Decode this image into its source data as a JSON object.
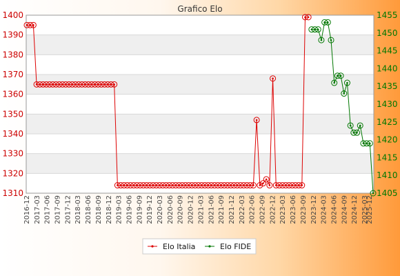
{
  "chart_data": {
    "type": "line",
    "title": "Grafico Elo",
    "x_axis": {
      "ticks": [
        "2016-12",
        "2017-03",
        "2017-06",
        "2017-09",
        "2017-12",
        "2018-03",
        "2018-06",
        "2018-09",
        "2018-12",
        "2019-03",
        "2019-06",
        "2019-09",
        "2019-12",
        "2020-03",
        "2020-06",
        "2020-09",
        "2020-12",
        "2021-03",
        "2021-06",
        "2021-09",
        "2021-12",
        "2022-03",
        "2022-06",
        "2022-09",
        "2022-12",
        "2023-03",
        "2023-06",
        "2023-09",
        "2023-12",
        "2024-03",
        "2024-06",
        "2024-09",
        "2024-12",
        "2025-03"
      ],
      "first_label": "2016-12",
      "last_label": "2025-12"
    },
    "y_left": {
      "min": 1310,
      "max": 1400,
      "ticks": [
        1310,
        1320,
        1330,
        1340,
        1350,
        1360,
        1370,
        1380,
        1390,
        1400
      ]
    },
    "y_right": {
      "min": 1405,
      "max": 1455,
      "ticks": [
        1405,
        1410,
        1415,
        1420,
        1425,
        1430,
        1435,
        1440,
        1445,
        1450,
        1455
      ]
    },
    "grid": true,
    "legend_position": "bottom",
    "series": [
      {
        "name": "Elo Italia",
        "axis": "left",
        "color": "#dd0000",
        "points": [
          [
            0,
            1395
          ],
          [
            1,
            1395
          ],
          [
            2,
            1395
          ],
          [
            3,
            1365
          ],
          [
            4,
            1365
          ],
          [
            5,
            1365
          ],
          [
            6,
            1365
          ],
          [
            7,
            1365
          ],
          [
            8,
            1365
          ],
          [
            9,
            1365
          ],
          [
            10,
            1365
          ],
          [
            11,
            1365
          ],
          [
            12,
            1365
          ],
          [
            13,
            1365
          ],
          [
            14,
            1365
          ],
          [
            15,
            1365
          ],
          [
            16,
            1365
          ],
          [
            17,
            1365
          ],
          [
            18,
            1365
          ],
          [
            19,
            1365
          ],
          [
            20,
            1365
          ],
          [
            21,
            1365
          ],
          [
            22,
            1365
          ],
          [
            23,
            1365
          ],
          [
            24,
            1365
          ],
          [
            25,
            1365
          ],
          [
            26,
            1365
          ],
          [
            27,
            1365
          ],
          [
            28,
            1314
          ],
          [
            29,
            1314
          ],
          [
            30,
            1314
          ],
          [
            31,
            1314
          ],
          [
            32,
            1314
          ],
          [
            33,
            1314
          ],
          [
            34,
            1314
          ],
          [
            35,
            1314
          ],
          [
            36,
            1314
          ],
          [
            37,
            1314
          ],
          [
            38,
            1314
          ],
          [
            39,
            1314
          ],
          [
            40,
            1314
          ],
          [
            41,
            1314
          ],
          [
            42,
            1314
          ],
          [
            43,
            1314
          ],
          [
            44,
            1314
          ],
          [
            45,
            1314
          ],
          [
            46,
            1314
          ],
          [
            47,
            1314
          ],
          [
            48,
            1314
          ],
          [
            49,
            1314
          ],
          [
            50,
            1314
          ],
          [
            51,
            1314
          ],
          [
            52,
            1314
          ],
          [
            53,
            1314
          ],
          [
            54,
            1314
          ],
          [
            55,
            1314
          ],
          [
            56,
            1314
          ],
          [
            57,
            1314
          ],
          [
            58,
            1314
          ],
          [
            59,
            1314
          ],
          [
            60,
            1314
          ],
          [
            61,
            1314
          ],
          [
            62,
            1314
          ],
          [
            63,
            1314
          ],
          [
            64,
            1314
          ],
          [
            65,
            1314
          ],
          [
            66,
            1314
          ],
          [
            67,
            1314
          ],
          [
            68,
            1314
          ],
          [
            69,
            1314
          ],
          [
            70,
            1314
          ],
          [
            71,
            1347
          ],
          [
            72,
            1314
          ],
          [
            73,
            1315
          ],
          [
            74,
            1317
          ],
          [
            75,
            1314
          ],
          [
            76,
            1368
          ],
          [
            77,
            1314
          ],
          [
            78,
            1314
          ],
          [
            79,
            1314
          ],
          [
            80,
            1314
          ],
          [
            81,
            1314
          ],
          [
            82,
            1314
          ],
          [
            83,
            1314
          ],
          [
            84,
            1314
          ],
          [
            85,
            1314
          ],
          [
            86,
            1399
          ],
          [
            87,
            1399
          ]
        ]
      },
      {
        "name": "Elo FIDE",
        "axis": "right",
        "color": "#007700",
        "points": [
          [
            88,
            1451
          ],
          [
            89,
            1451
          ],
          [
            90,
            1451
          ],
          [
            91,
            1448
          ],
          [
            92,
            1453
          ],
          [
            93,
            1453
          ],
          [
            94,
            1448
          ],
          [
            95,
            1436
          ],
          [
            96,
            1438
          ],
          [
            97,
            1438
          ],
          [
            98,
            1433
          ],
          [
            99,
            1436
          ],
          [
            100,
            1424
          ],
          [
            101,
            1422
          ],
          [
            102,
            1422
          ],
          [
            103,
            1424
          ],
          [
            104,
            1419
          ],
          [
            105,
            1419
          ],
          [
            106,
            1419
          ],
          [
            107,
            1405
          ]
        ]
      }
    ],
    "x_count": 108
  }
}
